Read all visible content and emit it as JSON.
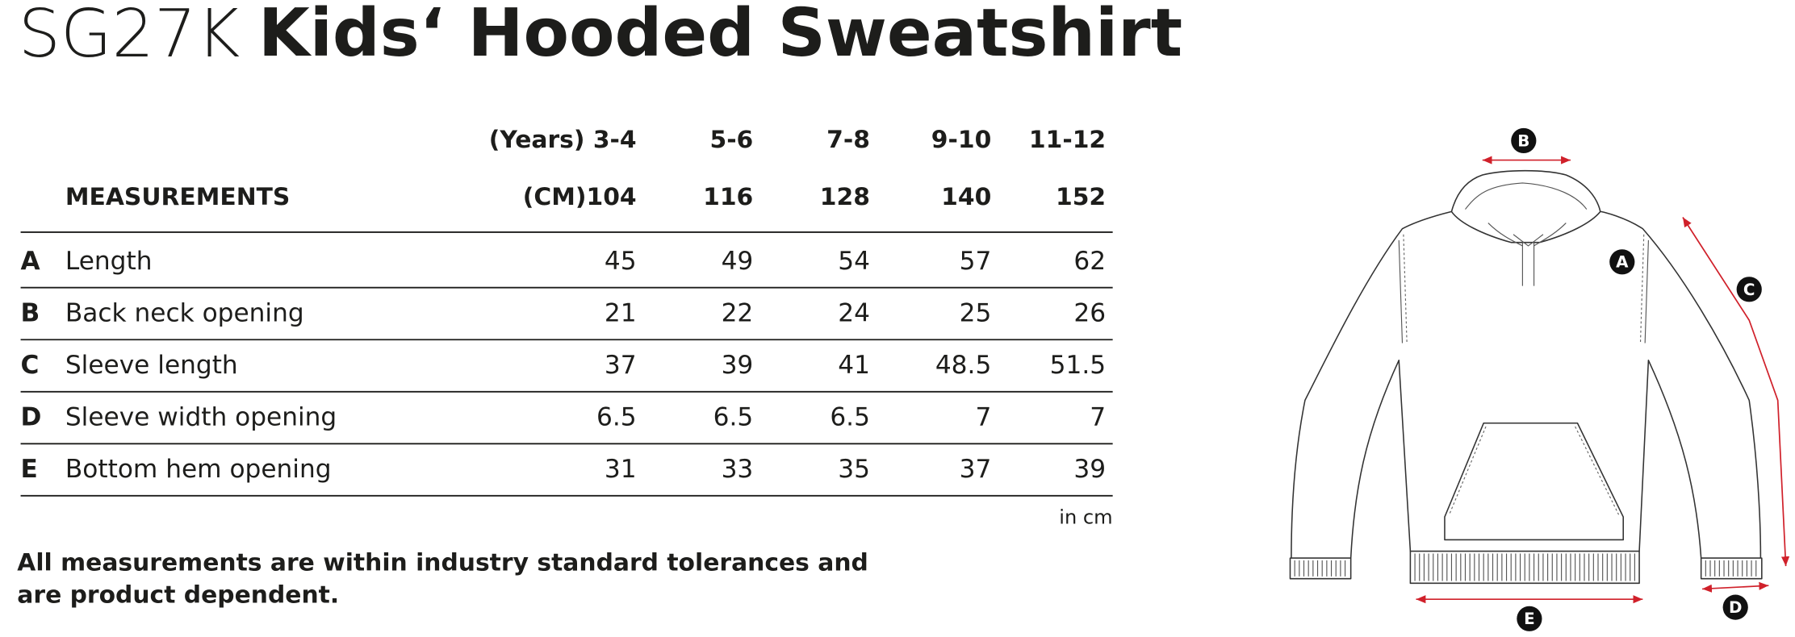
{
  "header": {
    "code": "SG27K",
    "title": "Kids‘ Hooded Sweatshirt"
  },
  "table": {
    "size_row": [
      "(Years) 3-4",
      "5-6",
      "7-8",
      "9-10",
      "11-12"
    ],
    "cm_row": {
      "label": "MEASUREMENTS",
      "values": [
        "(CM)104",
        "116",
        "128",
        "140",
        "152"
      ]
    },
    "rows": [
      {
        "letter": "A",
        "label": "Length",
        "values": [
          "45",
          "49",
          "54",
          "57",
          "62"
        ]
      },
      {
        "letter": "B",
        "label": "Back neck opening",
        "values": [
          "21",
          "22",
          "24",
          "25",
          "26"
        ]
      },
      {
        "letter": "C",
        "label": "Sleeve length",
        "values": [
          "37",
          "39",
          "41",
          "48.5",
          "51.5"
        ]
      },
      {
        "letter": "D",
        "label": "Sleeve width opening",
        "values": [
          "6.5",
          "6.5",
          "6.5",
          "7",
          "7"
        ]
      },
      {
        "letter": "E",
        "label": "Bottom hem opening",
        "values": [
          "31",
          "33",
          "35",
          "37",
          "39"
        ]
      }
    ],
    "unit": "in cm"
  },
  "note": [
    "All measurements are within industry standard tolerances and",
    "are product dependent."
  ],
  "diagram": {
    "labels": [
      "A",
      "B",
      "C",
      "D",
      "E"
    ]
  }
}
